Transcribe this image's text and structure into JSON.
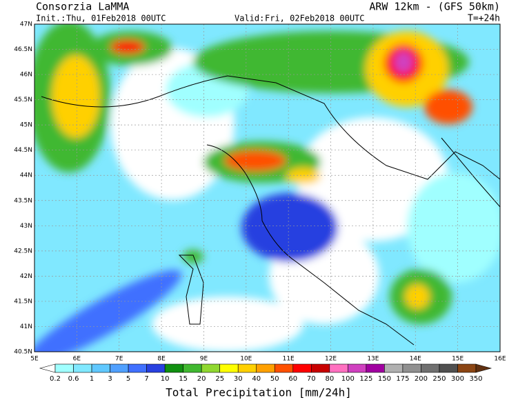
{
  "header": {
    "title": "Consorzia LaMMA",
    "model": "ARW 12km - (GFS 50km)",
    "init_label": "Init.:",
    "init": "Thu, 01Feb2018 00UTC",
    "valid_label": "Valid:",
    "valid": "Fri, 02Feb2018 00UTC",
    "lead": "T=+24h"
  },
  "map": {
    "lat_ticks": [
      {
        "value": 47,
        "label": "47N"
      },
      {
        "value": 46.5,
        "label": "46.5N"
      },
      {
        "value": 46,
        "label": "46N"
      },
      {
        "value": 45.5,
        "label": "45.5N"
      },
      {
        "value": 45,
        "label": "45N"
      },
      {
        "value": 44.5,
        "label": "44.5N"
      },
      {
        "value": 44,
        "label": "44N"
      },
      {
        "value": 43.5,
        "label": "43.5N"
      },
      {
        "value": 43,
        "label": "43N"
      },
      {
        "value": 42.5,
        "label": "42.5N"
      },
      {
        "value": 42,
        "label": "42N"
      },
      {
        "value": 41.5,
        "label": "41.5N"
      },
      {
        "value": 41,
        "label": "41N"
      },
      {
        "value": 40.5,
        "label": "40.5N"
      }
    ],
    "lon_ticks": [
      {
        "value": 5,
        "label": "5E"
      },
      {
        "value": 6,
        "label": "6E"
      },
      {
        "value": 7,
        "label": "7E"
      },
      {
        "value": 8,
        "label": "8E"
      },
      {
        "value": 9,
        "label": "9E"
      },
      {
        "value": 10,
        "label": "10E"
      },
      {
        "value": 11,
        "label": "11E"
      },
      {
        "value": 12,
        "label": "12E"
      },
      {
        "value": 13,
        "label": "13E"
      },
      {
        "value": 14,
        "label": "14E"
      },
      {
        "value": 15,
        "label": "15E"
      },
      {
        "value": 16,
        "label": "16E"
      }
    ],
    "lat_range": [
      40.5,
      47
    ],
    "lon_range": [
      5,
      16
    ]
  },
  "colorbar": {
    "title": "Total Precipitation [mm/24h]",
    "levels": [
      0.2,
      0.6,
      1,
      3,
      5,
      7,
      10,
      15,
      20,
      25,
      30,
      40,
      50,
      60,
      70,
      80,
      100,
      125,
      150,
      175,
      200,
      250,
      300,
      350
    ],
    "colors": [
      "#ffffff",
      "#a0ffff",
      "#80e8ff",
      "#60c8ff",
      "#50a0ff",
      "#4070ff",
      "#2840e0",
      "#109010",
      "#40b830",
      "#90d830",
      "#ffff00",
      "#ffd000",
      "#ffa000",
      "#ff5000",
      "#ff0000",
      "#c80000",
      "#ff70c0",
      "#d040c0",
      "#a000a0",
      "#b0b0b0",
      "#909090",
      "#707070",
      "#505050",
      "#8b4513",
      "#603010"
    ]
  }
}
